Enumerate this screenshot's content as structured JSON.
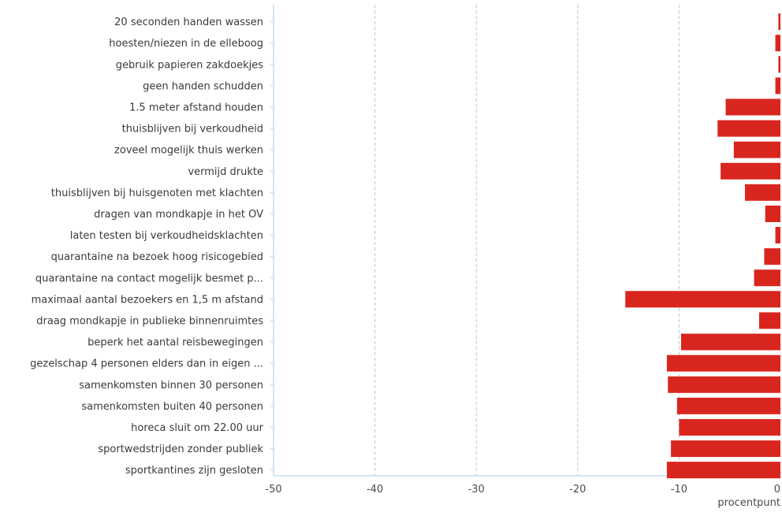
{
  "chart_data": {
    "type": "bar",
    "orientation": "horizontal",
    "categories": [
      "20 seconden handen wassen",
      "hoesten/niezen in de elleboog",
      "gebruik papieren zakdoekjes",
      "geen handen schudden",
      "1.5 meter afstand houden",
      "thuisblijven bij verkoudheid",
      "zoveel mogelijk thuis werken",
      "vermijd drukte",
      "thuisblijven bij huisgenoten met klachten",
      "dragen van mondkapje in het OV",
      "laten testen bij verkoudheidsklachten",
      "quarantaine na bezoek hoog risicogebied",
      "quarantaine na contact mogelijk besmet p...",
      "maximaal aantal bezoekers en 1,5 m afstand",
      "draag mondkapje in publieke binnenruimtes",
      "beperk het aantal reisbewegingen",
      "gezelschap 4 personen elders dan in eigen ...",
      "samenkomsten binnen 30 personen",
      "samenkomsten buiten 40 personen",
      "horeca sluit om 22.00 uur",
      "sportwedstrijden zonder publiek",
      "sportkantines zijn gesloten"
    ],
    "values": [
      -0.2,
      -0.5,
      -0.2,
      -0.5,
      -5.4,
      -6.2,
      -4.6,
      -5.9,
      -3.5,
      -1.5,
      -0.5,
      -1.6,
      -2.6,
      -15.3,
      -2.1,
      -9.8,
      -11.2,
      -11.1,
      -10.2,
      -10.0,
      -10.8,
      -11.2
    ],
    "xlim": [
      -50,
      0
    ],
    "xticks": [
      -50,
      -40,
      -30,
      -20,
      -10,
      0
    ],
    "xlabel": "procentpunt",
    "grid": "vertical dashed",
    "bar_color": "#d8261f",
    "grid_color": "#a9c8ec",
    "axis_color": "#bcd3f0"
  }
}
